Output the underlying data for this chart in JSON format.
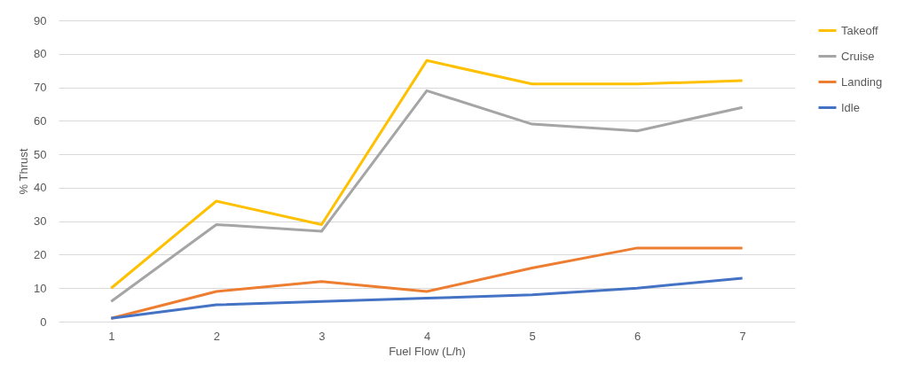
{
  "chart_data": {
    "type": "line",
    "xlabel": "Fuel Flow (L/h)",
    "ylabel": "% Thrust",
    "categories": [
      "1",
      "2",
      "3",
      "4",
      "5",
      "6",
      "7"
    ],
    "series": [
      {
        "name": "Takeoff",
        "color": "#ffc000",
        "values": [
          10,
          36,
          29,
          78,
          71,
          71,
          72
        ]
      },
      {
        "name": "Cruise",
        "color": "#a5a5a5",
        "values": [
          6,
          29,
          27,
          69,
          59,
          57,
          64
        ]
      },
      {
        "name": "Landing",
        "color": "#ed7d31",
        "values": [
          1,
          9,
          12,
          9,
          16,
          22,
          22
        ]
      },
      {
        "name": "Idle",
        "color": "#4472c4",
        "values": [
          1,
          5,
          6,
          7,
          8,
          10,
          13
        ]
      }
    ],
    "ylim": [
      0,
      90
    ],
    "yticks": [
      0,
      10,
      20,
      30,
      40,
      50,
      60,
      70,
      80,
      90
    ],
    "grid": "y",
    "legend": "right",
    "marker": "none",
    "line_style": "solid"
  }
}
